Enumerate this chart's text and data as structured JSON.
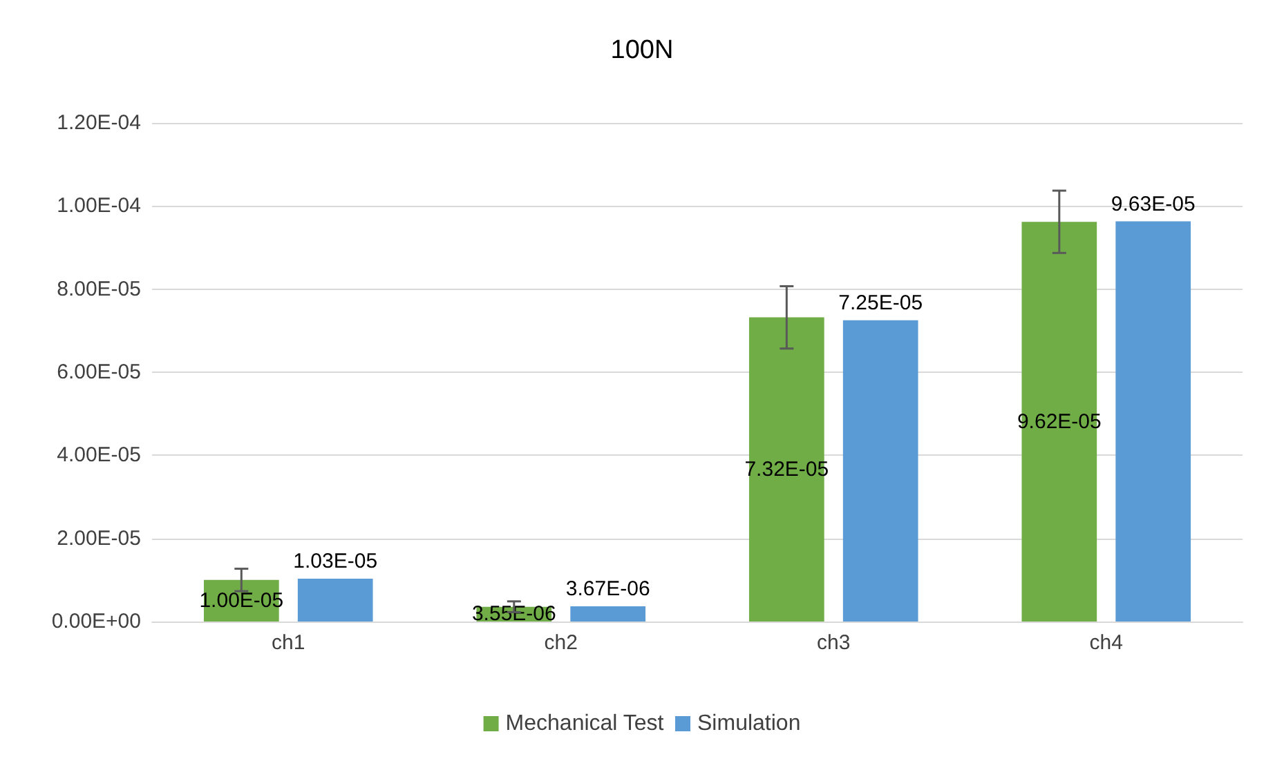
{
  "chart_data": {
    "type": "bar",
    "title": "100N",
    "categories": [
      "ch1",
      "ch2",
      "ch3",
      "ch4"
    ],
    "series": [
      {
        "name": "Mechanical Test",
        "color": "#70ad47",
        "values": [
          1e-05,
          3.55e-06,
          7.32e-05,
          9.62e-05
        ],
        "value_labels": [
          "1.00E-05",
          "3.55E-06",
          "7.32E-05",
          "9.62E-05"
        ],
        "errors": [
          2.7e-06,
          1.3e-06,
          7.5e-06,
          7.5e-06
        ]
      },
      {
        "name": "Simulation",
        "color": "#5b9bd5",
        "values": [
          1.03e-05,
          3.67e-06,
          7.25e-05,
          9.63e-05
        ],
        "value_labels": [
          "1.03E-05",
          "3.67E-06",
          "7.25E-05",
          "9.63E-05"
        ]
      }
    ],
    "ylim": [
      0,
      0.00012
    ],
    "yticks": [
      {
        "value": 0,
        "label": "0.00E+00"
      },
      {
        "value": 2e-05,
        "label": "2.00E-05"
      },
      {
        "value": 4e-05,
        "label": "4.00E-05"
      },
      {
        "value": 6e-05,
        "label": "6.00E-05"
      },
      {
        "value": 8e-05,
        "label": "8.00E-05"
      },
      {
        "value": 0.0001,
        "label": "1.00E-04"
      },
      {
        "value": 0.00012,
        "label": "1.20E-04"
      }
    ],
    "grid": "y",
    "legend": "bottom"
  }
}
